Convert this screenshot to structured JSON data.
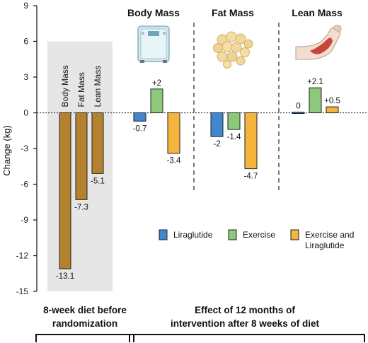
{
  "chart_data": {
    "type": "bar",
    "ylabel": "Change (kg)",
    "ylim": [
      -15,
      9
    ],
    "yticks": [
      9,
      6,
      3,
      0,
      -3,
      -6,
      -9,
      -12,
      -15
    ],
    "panels": [
      {
        "name": "diet",
        "categories": [
          "Body Mass",
          "Fat Mass",
          "Lean Mass"
        ],
        "values": [
          -13.1,
          -7.3,
          -5.1
        ],
        "value_labels": [
          "-13.1",
          "-7.3",
          "-5.1"
        ],
        "caption": [
          "8-week diet before",
          "randomization"
        ]
      },
      {
        "name": "intervention",
        "groups": [
          "Body Mass",
          "Fat Mass",
          "Lean Mass"
        ],
        "series": [
          {
            "name": "Liraglutide",
            "values": [
              -0.7,
              -2,
              0
            ],
            "labels": [
              "-0.7",
              "-2",
              "0"
            ]
          },
          {
            "name": "Exercise",
            "values": [
              2,
              -1.4,
              2.1
            ],
            "labels": [
              "+2",
              "-1.4",
              "+2.1"
            ]
          },
          {
            "name": "Exercise and Liraglutide",
            "values": [
              -3.4,
              -4.7,
              0.5
            ],
            "labels": [
              "-3.4",
              "-4.7",
              "+0.5"
            ]
          }
        ],
        "caption": [
          "Effect of 12 months of",
          "intervention after 8 weeks of diet"
        ]
      }
    ],
    "legend": {
      "position": "bottom-center",
      "items": [
        {
          "lines": [
            "Liraglutide"
          ]
        },
        {
          "lines": [
            "Exercise"
          ]
        },
        {
          "lines": [
            "Exercise and",
            "Liraglutide"
          ]
        }
      ]
    },
    "colors": {
      "diet": "#b4822f",
      "liraglutide": "#3f88cf",
      "exercise": "#8ec87a",
      "combo": "#f5b43c",
      "panel_bg": "#e6e6e6"
    },
    "icons": [
      "bathroom-scale-icon",
      "fat-cells-icon",
      "flexed-arm-muscle-icon"
    ]
  }
}
